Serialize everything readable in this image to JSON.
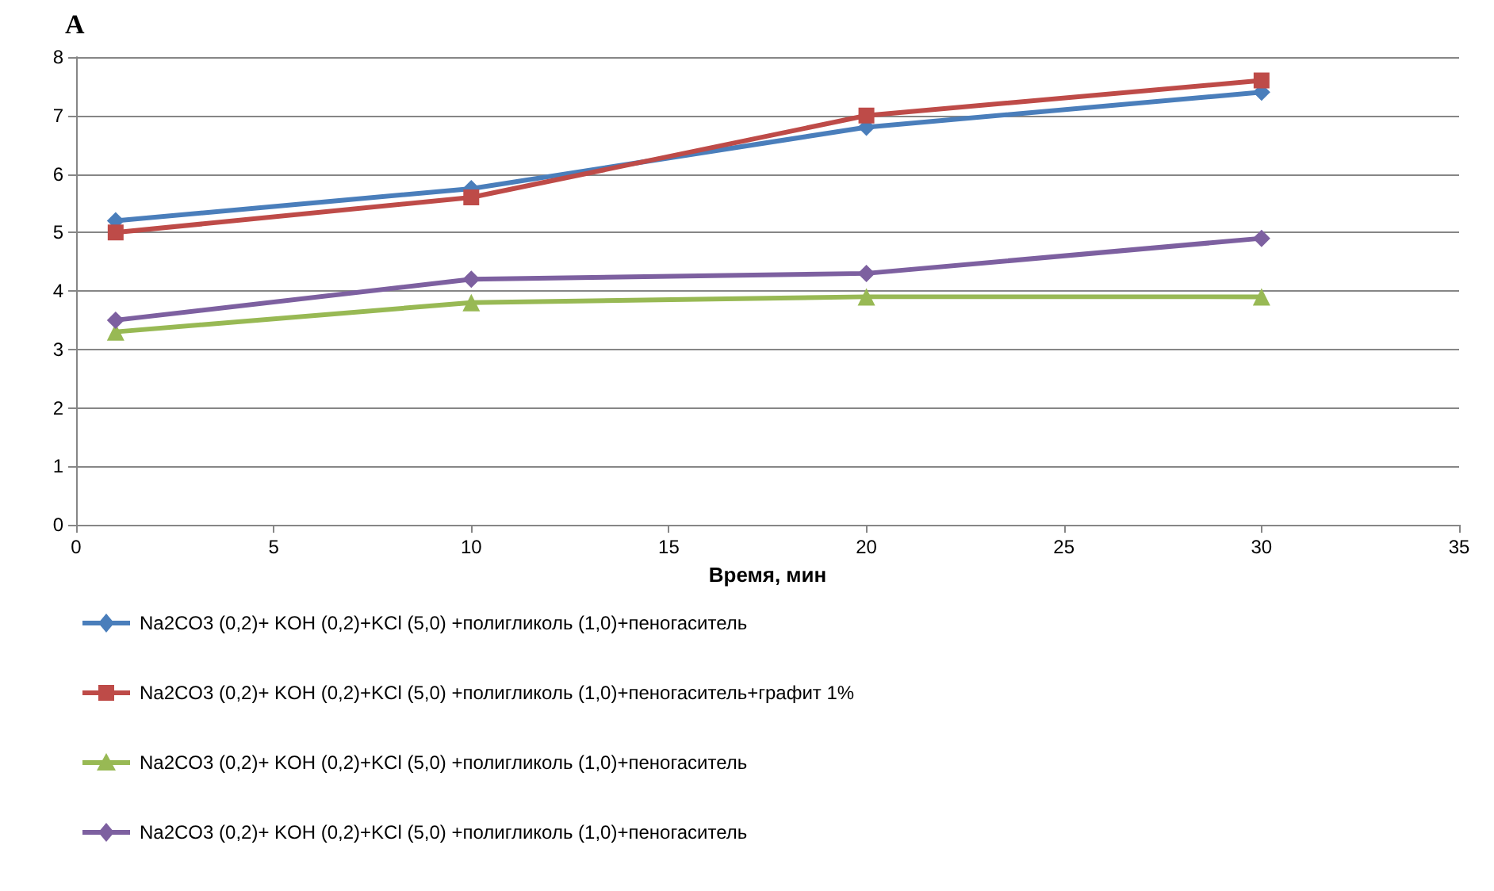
{
  "chart_data": {
    "type": "line",
    "title": "A",
    "xlabel": "Время, мин",
    "x": [
      1,
      10,
      20,
      30
    ],
    "series": [
      {
        "name": "Na2CO3 (0,2)+ KOH (0,2)+KCl (5,0) +полигликоль (1,0)+пеногаситель",
        "color": "#4a7ebb",
        "marker": "diamond",
        "values": [
          5.2,
          5.75,
          6.8,
          7.4
        ]
      },
      {
        "name": "Na2CO3 (0,2)+ KOH (0,2)+KCl (5,0) +полигликоль (1,0)+пеногаситель+графит 1%",
        "color": "#be4b48",
        "marker": "square",
        "values": [
          5.0,
          5.6,
          7.0,
          7.6
        ]
      },
      {
        "name": "Na2CO3 (0,2)+ KOH (0,2)+KCl (5,0) +полигликоль (1,0)+пеногаситель",
        "color": "#98b954",
        "marker": "triangle",
        "values": [
          3.3,
          3.8,
          3.9,
          3.9
        ]
      },
      {
        "name": "Na2CO3 (0,2)+ KOH (0,2)+KCl (5,0) +полигликоль (1,0)+пеногаситель",
        "color": "#7d60a0",
        "marker": "diamond",
        "values": [
          3.5,
          4.2,
          4.3,
          4.9
        ]
      }
    ],
    "xlim": [
      0,
      35
    ],
    "xticks": [
      0,
      5,
      10,
      15,
      20,
      25,
      30,
      35
    ],
    "ylim": [
      0,
      8
    ],
    "yticks": [
      0,
      1,
      2,
      3,
      4,
      5,
      6,
      7,
      8
    ],
    "grid": "y",
    "legend": "bottom",
    "line_style": "solid"
  }
}
